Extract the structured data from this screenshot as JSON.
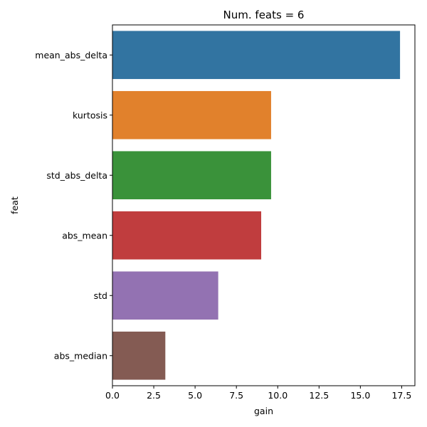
{
  "chart_data": {
    "type": "bar",
    "orientation": "horizontal",
    "title": "Num. feats = 6",
    "xlabel": "gain",
    "ylabel": "feat",
    "categories": [
      "mean_abs_delta",
      "kurtosis",
      "std_abs_delta",
      "abs_mean",
      "std",
      "abs_median"
    ],
    "values": [
      17.4,
      9.6,
      9.6,
      9.0,
      6.4,
      3.2
    ],
    "colors": [
      "#3274a1",
      "#e1812c",
      "#3a923a",
      "#c03d3e",
      "#9372b2",
      "#845b53"
    ],
    "xlim": [
      0,
      18.3
    ],
    "xticks": [
      0.0,
      2.5,
      5.0,
      7.5,
      10.0,
      12.5,
      15.0,
      17.5
    ],
    "xtick_labels": [
      "0.0",
      "2.5",
      "5.0",
      "7.5",
      "10.0",
      "12.5",
      "15.0",
      "17.5"
    ],
    "grid": false,
    "legend": false
  }
}
